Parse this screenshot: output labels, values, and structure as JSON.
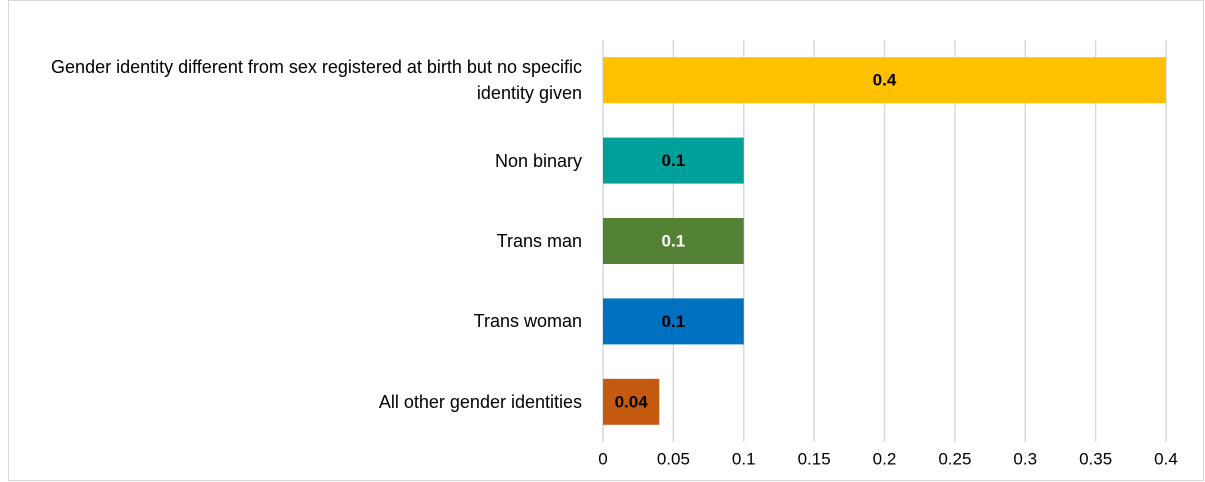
{
  "chart_data": {
    "type": "bar",
    "orientation": "horizontal",
    "categories": [
      "Gender identity different from sex registered at birth but no specific identity given",
      "Non binary",
      "Trans man",
      "Trans woman",
      "All other gender identities"
    ],
    "values": [
      0.4,
      0.1,
      0.1,
      0.1,
      0.04
    ],
    "colors": [
      "#ffc000",
      "#00a09a",
      "#548235",
      "#0070c0",
      "#c55a11"
    ],
    "label_colors": [
      "#000000",
      "#000000",
      "#ffffff",
      "#000000",
      "#000000"
    ],
    "xlim": [
      0,
      0.4
    ],
    "xticks": [
      0,
      0.05,
      0.1,
      0.15,
      0.2,
      0.25,
      0.3,
      0.35,
      0.4
    ],
    "grid": true
  }
}
